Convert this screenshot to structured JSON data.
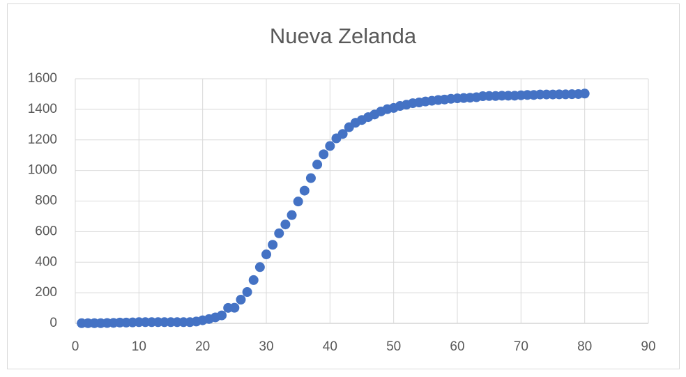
{
  "chart_data": {
    "type": "scatter",
    "title": "Nueva Zelanda",
    "x": [
      1,
      2,
      3,
      4,
      5,
      6,
      7,
      8,
      9,
      10,
      11,
      12,
      13,
      14,
      15,
      16,
      17,
      18,
      19,
      20,
      21,
      22,
      23,
      24,
      25,
      26,
      27,
      28,
      29,
      30,
      31,
      32,
      33,
      34,
      35,
      36,
      37,
      38,
      39,
      40,
      41,
      42,
      43,
      44,
      45,
      46,
      47,
      48,
      49,
      50,
      51,
      52,
      53,
      54,
      55,
      56,
      57,
      58,
      59,
      60,
      61,
      62,
      63,
      64,
      65,
      66,
      67,
      68,
      69,
      70,
      71,
      72,
      73,
      74,
      75,
      76,
      77,
      78,
      79,
      80
    ],
    "values": [
      1,
      1,
      1,
      1,
      2,
      3,
      5,
      5,
      6,
      8,
      8,
      8,
      8,
      8,
      8,
      8,
      8,
      8,
      12,
      20,
      28,
      39,
      52,
      101,
      102,
      155,
      205,
      283,
      368,
      451,
      514,
      589,
      647,
      708,
      797,
      868,
      950,
      1039,
      1106,
      1160,
      1210,
      1239,
      1283,
      1312,
      1330,
      1349,
      1366,
      1386,
      1401,
      1409,
      1422,
      1430,
      1440,
      1445,
      1451,
      1456,
      1461,
      1464,
      1469,
      1472,
      1474,
      1476,
      1479,
      1486,
      1487,
      1487,
      1489,
      1489,
      1489,
      1492,
      1494,
      1494,
      1497,
      1497,
      1497,
      1498,
      1498,
      1499,
      1500,
      1503
    ],
    "color": "#4472c4",
    "xlim": [
      0,
      90
    ],
    "xticks": [
      0,
      10,
      20,
      30,
      40,
      50,
      60,
      70,
      80,
      90
    ],
    "ylim": [
      0,
      1600
    ],
    "yticks": [
      0,
      200,
      400,
      600,
      800,
      1000,
      1200,
      1400,
      1600
    ],
    "grid": true
  }
}
